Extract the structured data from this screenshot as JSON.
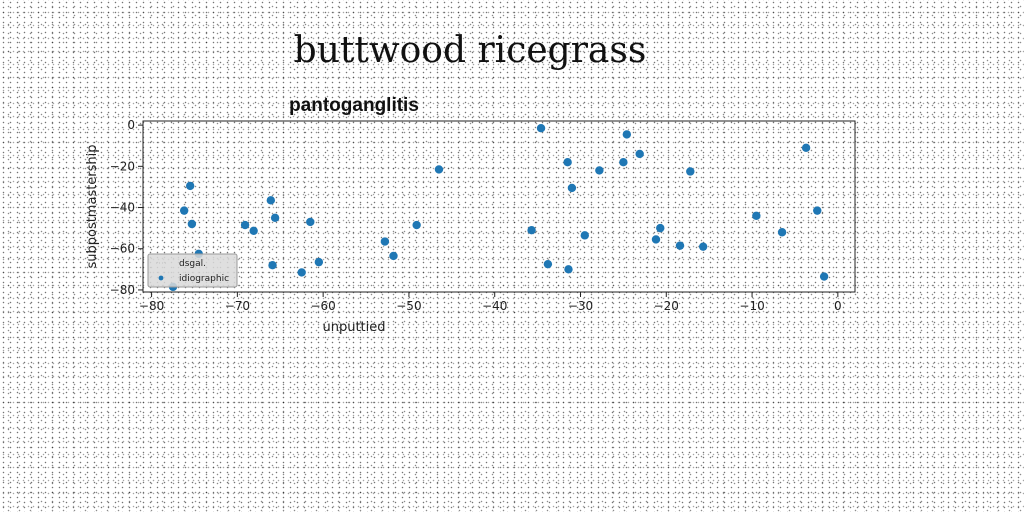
{
  "page": {
    "title": "buttwood ricegrass"
  },
  "chart_data": {
    "type": "scatter",
    "title": "pantoganglitis",
    "xlabel": "unputtied",
    "ylabel": "subpostmastership",
    "xlim": [
      -81,
      2
    ],
    "ylim": [
      -81,
      2
    ],
    "xticks": [
      -80,
      -70,
      -60,
      -50,
      -40,
      -30,
      -20,
      -10,
      0
    ],
    "yticks": [
      0,
      -20,
      -40,
      -60,
      -80
    ],
    "grid": false,
    "legend": {
      "placement": "lower-left"
    },
    "series": [
      {
        "name": "dsgal.",
        "color": "#c0c0c0",
        "points": []
      },
      {
        "name": "idiographic",
        "color": "#1f77b4",
        "points": [
          {
            "x": -75.5,
            "y": -29.5
          },
          {
            "x": -76.2,
            "y": -41.5
          },
          {
            "x": -75.3,
            "y": -48.0
          },
          {
            "x": -74.5,
            "y": -62.5
          },
          {
            "x": -77.5,
            "y": -78.5
          },
          {
            "x": -69.1,
            "y": -48.5
          },
          {
            "x": -68.1,
            "y": -51.3
          },
          {
            "x": -66.1,
            "y": -36.5
          },
          {
            "x": -65.6,
            "y": -45.0
          },
          {
            "x": -65.9,
            "y": -68.0
          },
          {
            "x": -61.5,
            "y": -47.0
          },
          {
            "x": -62.5,
            "y": -71.5
          },
          {
            "x": -60.5,
            "y": -66.5
          },
          {
            "x": -52.8,
            "y": -56.5
          },
          {
            "x": -51.8,
            "y": -63.5
          },
          {
            "x": -49.1,
            "y": -48.5
          },
          {
            "x": -46.5,
            "y": -21.5
          },
          {
            "x": -35.7,
            "y": -51.0
          },
          {
            "x": -34.6,
            "y": -1.5
          },
          {
            "x": -33.8,
            "y": -67.5
          },
          {
            "x": -31.5,
            "y": -18.0
          },
          {
            "x": -31.0,
            "y": -30.5
          },
          {
            "x": -31.4,
            "y": -70.0
          },
          {
            "x": -29.5,
            "y": -53.5
          },
          {
            "x": -27.8,
            "y": -22.0
          },
          {
            "x": -25.0,
            "y": -18.0
          },
          {
            "x": -24.6,
            "y": -4.5
          },
          {
            "x": -23.1,
            "y": -14.0
          },
          {
            "x": -21.2,
            "y": -55.5
          },
          {
            "x": -20.7,
            "y": -50.0
          },
          {
            "x": -18.4,
            "y": -58.5
          },
          {
            "x": -17.2,
            "y": -22.5
          },
          {
            "x": -15.7,
            "y": -59.0
          },
          {
            "x": -9.5,
            "y": -44.0
          },
          {
            "x": -6.5,
            "y": -52.0
          },
          {
            "x": -3.7,
            "y": -11.0
          },
          {
            "x": -2.4,
            "y": -41.5
          },
          {
            "x": -1.6,
            "y": -73.5
          }
        ]
      }
    ]
  }
}
